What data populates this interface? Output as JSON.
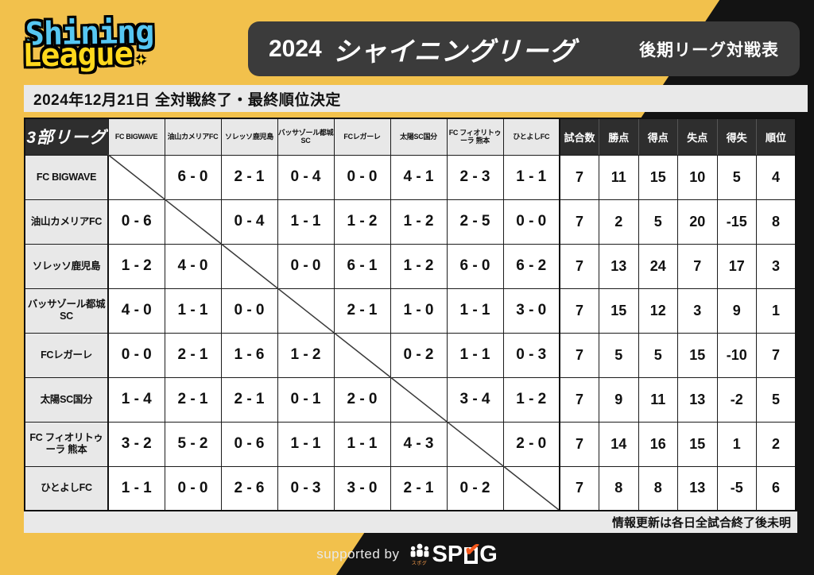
{
  "header": {
    "logo_line1": "Shining",
    "logo_line2": "League",
    "sparkle": "✦",
    "year": "2024",
    "league_name": "シャイニングリーグ",
    "right_label": "後期リーグ対戦表"
  },
  "announcement": "2024年12月21日 全対戦終了・最終順位決定",
  "note": "情報更新は各日全試合終了後未明",
  "footer": {
    "supported_by": "supported by",
    "logo_prefix": "SP",
    "logo_suffix": "G",
    "logo_check": "✔",
    "logo_sub": "スポグ"
  },
  "colors": {
    "background_yellow": "#F2C14C",
    "background_black": "#131313",
    "title_bar": "#3B3B3B",
    "logo_cyan": "#56C7F2",
    "logo_yellow": "#FFD81C",
    "strip_gray": "#E9E9E9",
    "dark_cell": "#2E2E2E",
    "check_orange": "#F4581C"
  },
  "chart_data": {
    "type": "table",
    "title": "2024 シャイニングリーグ",
    "subtitle": "後期リーグ対戦表",
    "league_label": "3部リーグ",
    "team_columns": [
      "FC BIGWAVE",
      "油山カメリアFC",
      "ソレッソ鹿児島",
      "バッサゾール都城SC",
      "FCレガーレ",
      "太陽SC国分",
      "FC フィオリトゥーラ 熊本",
      "ひとよしFC"
    ],
    "stat_columns": [
      "試合数",
      "勝点",
      "得点",
      "失点",
      "得失",
      "順位"
    ],
    "rows": [
      {
        "team": "FC BIGWAVE",
        "scores": [
          "",
          "6 - 0",
          "2 - 1",
          "0 - 4",
          "0 - 0",
          "4 - 1",
          "2 - 3",
          "1 - 1"
        ],
        "stats": [
          "7",
          "11",
          "15",
          "10",
          "5",
          "4"
        ]
      },
      {
        "team": "油山カメリアFC",
        "scores": [
          "0 - 6",
          "",
          "0 - 4",
          "1 - 1",
          "1 - 2",
          "1 - 2",
          "2 - 5",
          "0 - 0"
        ],
        "stats": [
          "7",
          "2",
          "5",
          "20",
          "-15",
          "8"
        ]
      },
      {
        "team": "ソレッソ鹿児島",
        "scores": [
          "1 - 2",
          "4 - 0",
          "",
          "0 - 0",
          "6 - 1",
          "1 - 2",
          "6 - 0",
          "6 - 2"
        ],
        "stats": [
          "7",
          "13",
          "24",
          "7",
          "17",
          "3"
        ]
      },
      {
        "team": "バッサゾール都城SC",
        "scores": [
          "4 - 0",
          "1 - 1",
          "0 - 0",
          "",
          "2 - 1",
          "1 - 0",
          "1 - 1",
          "3 - 0"
        ],
        "stats": [
          "7",
          "15",
          "12",
          "3",
          "9",
          "1"
        ]
      },
      {
        "team": "FCレガーレ",
        "scores": [
          "0 - 0",
          "2 - 1",
          "1 - 6",
          "1 - 2",
          "",
          "0 - 2",
          "1 - 1",
          "0 - 3"
        ],
        "stats": [
          "7",
          "5",
          "5",
          "15",
          "-10",
          "7"
        ]
      },
      {
        "team": "太陽SC国分",
        "scores": [
          "1 - 4",
          "2 - 1",
          "2 - 1",
          "0 - 1",
          "2 - 0",
          "",
          "3 - 4",
          "1 - 2"
        ],
        "stats": [
          "7",
          "9",
          "11",
          "13",
          "-2",
          "5"
        ]
      },
      {
        "team": "FC フィオリトゥーラ 熊本",
        "scores": [
          "3 - 2",
          "5 - 2",
          "0 - 6",
          "1 - 1",
          "1 - 1",
          "4 - 3",
          "",
          "2 - 0"
        ],
        "stats": [
          "7",
          "14",
          "16",
          "15",
          "1",
          "2"
        ]
      },
      {
        "team": "ひとよしFC",
        "scores": [
          "1 - 1",
          "0 - 0",
          "2 - 6",
          "0 - 3",
          "3 - 0",
          "2 - 1",
          "0 - 2",
          ""
        ],
        "stats": [
          "7",
          "8",
          "8",
          "13",
          "-5",
          "6"
        ]
      }
    ]
  }
}
